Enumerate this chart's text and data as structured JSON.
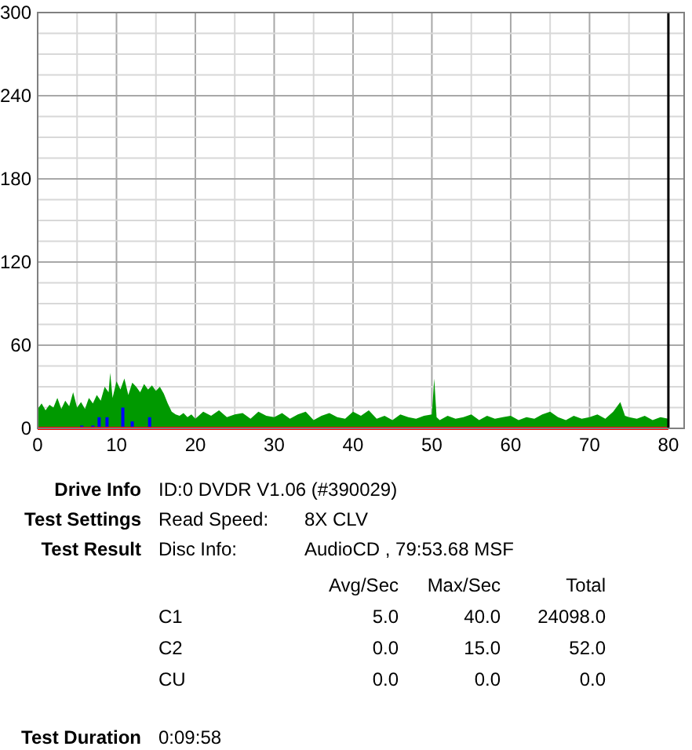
{
  "chart_data": {
    "type": "area",
    "xlim": [
      0,
      82
    ],
    "ylim": [
      0,
      300
    ],
    "xticks": [
      0,
      {
        "value": 5,
        "label": null
      },
      10,
      {
        "value": 15,
        "label": null
      },
      20,
      {
        "value": 25,
        "label": null
      },
      30,
      {
        "value": 35,
        "label": null
      },
      40,
      {
        "value": 45,
        "label": null
      },
      50,
      {
        "value": 55,
        "label": null
      },
      60,
      {
        "value": 65,
        "label": null
      },
      70,
      {
        "value": 75,
        "label": null
      },
      80
    ],
    "yticks": [
      0,
      {
        "value": 15,
        "label": null
      },
      {
        "value": 30,
        "label": null
      },
      {
        "value": 45,
        "label": null
      },
      60,
      {
        "value": 75,
        "label": null
      },
      {
        "value": 90,
        "label": null
      },
      {
        "value": 105,
        "label": null
      },
      120,
      {
        "value": 135,
        "label": null
      },
      {
        "value": 150,
        "label": null
      },
      {
        "value": 165,
        "label": null
      },
      180,
      {
        "value": 195,
        "label": null
      },
      {
        "value": 210,
        "label": null
      },
      {
        "value": 225,
        "label": null
      },
      240,
      {
        "value": 255,
        "label": null
      },
      {
        "value": 270,
        "label": null
      },
      {
        "value": 285,
        "label": null
      },
      300
    ],
    "grid": true,
    "series": [
      {
        "color": "#009900",
        "x": [
          0,
          0.5,
          1,
          1.5,
          2,
          2.5,
          3,
          3.5,
          4,
          4.5,
          5,
          5.5,
          6,
          6.5,
          7,
          7.5,
          8,
          8.5,
          9,
          9.2,
          9.5,
          10,
          10.5,
          11,
          11.5,
          12,
          12.5,
          13,
          13.5,
          14,
          14.5,
          15,
          15.5,
          16,
          16.5,
          17,
          17.5,
          18,
          18.5,
          19,
          19.5,
          20,
          21,
          22,
          23,
          24,
          25,
          26,
          27,
          28,
          29,
          30,
          31,
          32,
          33,
          34,
          35,
          36,
          37,
          38,
          39,
          40,
          41,
          42,
          43,
          44,
          45,
          46,
          47,
          48,
          49,
          50,
          50.3,
          50.6,
          51,
          52,
          53,
          54,
          55,
          56,
          57,
          58,
          59,
          60,
          61,
          62,
          63,
          64,
          65,
          66,
          67,
          68,
          69,
          70,
          71,
          72,
          73,
          73.9,
          74.5,
          75,
          76,
          77,
          78,
          79,
          80
        ],
        "values": [
          14,
          18,
          13,
          17,
          15,
          22,
          14,
          20,
          16,
          26,
          15,
          19,
          14,
          22,
          18,
          24,
          20,
          30,
          26,
          40,
          22,
          34,
          28,
          36,
          24,
          33,
          30,
          26,
          32,
          28,
          31,
          27,
          30,
          25,
          18,
          12,
          10,
          9,
          11,
          8,
          10,
          7,
          12,
          9,
          13,
          8,
          10,
          11,
          7,
          12,
          9,
          8,
          11,
          7,
          10,
          12,
          6,
          9,
          11,
          8,
          7,
          12,
          9,
          13,
          7,
          9,
          6,
          10,
          8,
          7,
          9,
          10,
          36,
          8,
          6,
          9,
          7,
          8,
          10,
          6,
          9,
          7,
          8,
          9,
          6,
          8,
          7,
          10,
          12,
          8,
          6,
          9,
          7,
          8,
          10,
          7,
          12,
          19,
          9,
          8,
          7,
          9,
          6,
          8,
          7
        ]
      },
      {
        "type": "bar",
        "color": "#0000ff",
        "x": [
          5.6,
          7,
          7.8,
          8.8,
          10.8,
          12,
          14.2
        ],
        "values": [
          2,
          2,
          8,
          8,
          15,
          5,
          8
        ]
      },
      {
        "type": "line",
        "color": "#ff0000",
        "x": [
          0,
          80
        ],
        "values": [
          0,
          0
        ]
      }
    ],
    "ref_lines": [
      {
        "axis": "x",
        "value": 80,
        "color": "#000000"
      }
    ],
    "annotations": [
      "Drive Info",
      "ID:0 DVDR V1.06 (#390029)",
      "Test Settings",
      "Read Speed:",
      "8X CLV",
      "Test Result",
      "Disc Info:",
      "AudioCD , 79:53.68 MSF",
      "Avg/Sec",
      "Max/Sec",
      "Total",
      "C1",
      "5.0",
      "40.0",
      "24098.0",
      "C2",
      "0.0",
      "15.0",
      "52.0",
      "CU",
      "0.0",
      "0.0",
      "0.0",
      "Test Duration",
      "0:09:58"
    ]
  }
}
